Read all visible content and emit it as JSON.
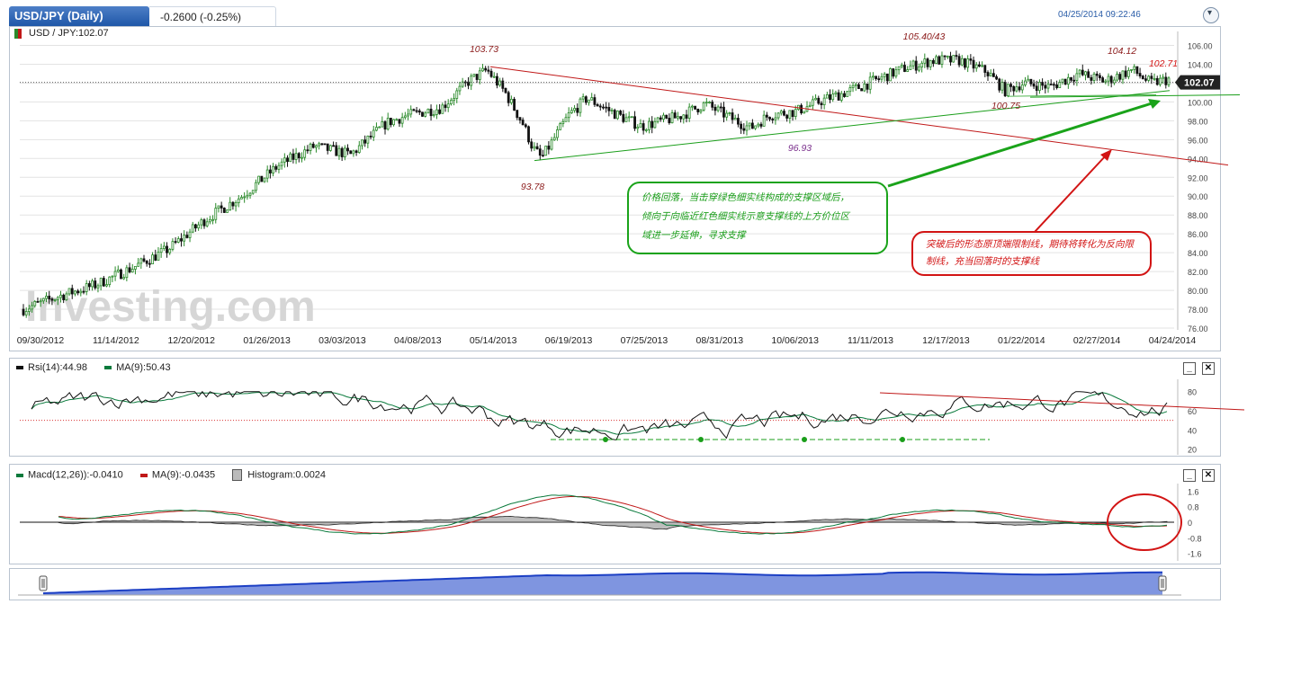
{
  "header": {
    "symbol_tab": "USD/JPY (Daily)",
    "change": "-0.2600 (-0.25%)",
    "timestamp": "04/25/2014 09:22:46",
    "toggle_icon": "chevron-down-icon"
  },
  "main_panel": {
    "legend": "USD / JPY:102.07",
    "last_price_tag": "102.07",
    "watermark": "Investing.com"
  },
  "chart_data": [
    {
      "type": "candlestick",
      "title": "USD / JPY:102.07",
      "x_tick_labels": [
        "09/30/2012",
        "11/14/2012",
        "12/20/2012",
        "01/26/2013",
        "03/03/2013",
        "04/08/2013",
        "05/14/2013",
        "06/19/2013",
        "07/25/2013",
        "08/31/2013",
        "10/06/2013",
        "11/11/2013",
        "12/17/2013",
        "01/22/2014",
        "02/27/2014",
        "04/24/2014"
      ],
      "y_tick_labels": [
        "106.00",
        "104.00",
        "102.00",
        "100.00",
        "98.00",
        "96.00",
        "94.00",
        "92.00",
        "90.00",
        "88.00",
        "86.00",
        "84.00",
        "82.00",
        "80.00",
        "78.00",
        "76.00"
      ],
      "ylim": [
        76,
        107
      ],
      "last": 102.07,
      "trend_path": [
        [
          0,
          78.0
        ],
        [
          0.04,
          79.4
        ],
        [
          0.08,
          80.6
        ],
        [
          0.12,
          82.4
        ],
        [
          0.16,
          84.4
        ],
        [
          0.2,
          87.5
        ],
        [
          0.24,
          90.0
        ],
        [
          0.28,
          93.2
        ],
        [
          0.32,
          95.3
        ],
        [
          0.36,
          94.4
        ],
        [
          0.4,
          97.8
        ],
        [
          0.42,
          98.5
        ],
        [
          0.46,
          99.4
        ],
        [
          0.49,
          102.2
        ],
        [
          0.51,
          103.4
        ],
        [
          0.53,
          101.0
        ],
        [
          0.55,
          97.6
        ],
        [
          0.56,
          95.2
        ],
        [
          0.57,
          94.0
        ],
        [
          0.6,
          98.6
        ],
        [
          0.62,
          100.4
        ],
        [
          0.65,
          98.8
        ],
        [
          0.68,
          97.4
        ],
        [
          0.72,
          98.4
        ],
        [
          0.75,
          99.8
        ],
        [
          0.78,
          98.2
        ],
        [
          0.8,
          97.2
        ],
        [
          0.82,
          98.6
        ],
        [
          0.85,
          99.0
        ],
        [
          0.88,
          100.2
        ],
        [
          0.91,
          101.2
        ],
        [
          0.94,
          102.4
        ],
        [
          0.97,
          103.6
        ],
        [
          1.0,
          104.4
        ],
        [
          1.03,
          104.4
        ],
        [
          1.06,
          103.2
        ],
        [
          1.08,
          101.2
        ],
        [
          1.1,
          102.0
        ],
        [
          1.13,
          101.6
        ],
        [
          1.16,
          103.0
        ],
        [
          1.19,
          102.2
        ],
        [
          1.22,
          103.4
        ],
        [
          1.24,
          102.0
        ],
        [
          1.26,
          102.4
        ]
      ],
      "annotations": [
        {
          "text": "103.73",
          "value": 103.73
        },
        {
          "text": "93.78",
          "value": 93.78
        },
        {
          "text": "105.40/43",
          "value": 105.42
        },
        {
          "text": "96.93",
          "value": 96.93
        },
        {
          "text": "100.75",
          "value": 100.75
        },
        {
          "text": "104.12",
          "value": 104.12
        },
        {
          "text": "102.71",
          "value": 102.71
        }
      ],
      "notes": [
        {
          "lines": [
            "价格回落，当击穿绿色细实线构成的支撑区域后，",
            "倾向于向临近红色细实线示意支撑线的上方价位区",
            "域进一步延伸，寻求支撑"
          ],
          "color": "#1a9e1a"
        },
        {
          "lines": [
            "突破后的形态原顶端限制线，期待将转化为反向限",
            "制线，充当回落时的支撑线"
          ],
          "color": "#d21414"
        }
      ]
    },
    {
      "type": "line",
      "legend": [
        {
          "name": "Rsi(14):44.98",
          "color": "#111111"
        },
        {
          "name": "MA(9):50.43",
          "color": "#0a7a3c"
        }
      ],
      "y_tick_labels": [
        "80",
        "60",
        "40",
        "20"
      ],
      "ylim": [
        15,
        90
      ],
      "reference_line": 50
    },
    {
      "type": "line",
      "legend": [
        {
          "name": "Macd(12,26)):-0.0410",
          "color": "#0a7a3c"
        },
        {
          "name": "MA(9):-0.0435",
          "color": "#c01818"
        },
        {
          "name": "Histogram:0.0024",
          "color": "#888888"
        }
      ],
      "y_tick_labels": [
        "1.6",
        "0.8",
        "0",
        "-0.8",
        "-1.6"
      ],
      "ylim": [
        -1.8,
        1.8
      ]
    }
  ],
  "panel_buttons": {
    "minimize": "_",
    "close": "✕"
  },
  "navigator": {
    "left_handle": "handle-left",
    "right_handle": "handle-right"
  },
  "colors": {
    "up": "#2a8a2a",
    "down": "#111111",
    "accent": "#1f57a8",
    "navigator_fill": "#7f95e0",
    "navigator_line": "#1c3fc4"
  }
}
